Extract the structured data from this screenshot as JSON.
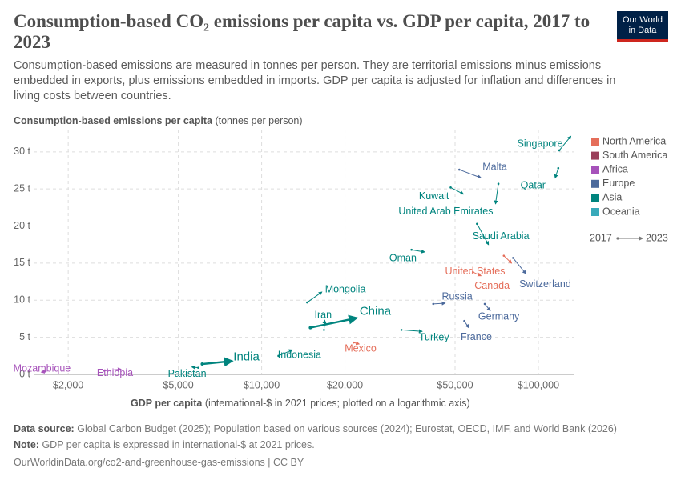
{
  "chart_data": {
    "type": "connected-scatter",
    "title": "Consumption-based CO₂ emissions per capita vs. GDP per capita, 2017 to 2023",
    "subtitle": "Consumption-based emissions are measured in tonnes per person. They are territorial emissions minus emissions embedded in exports, plus emissions embedded in imports. GDP per capita is adjusted for inflation and differences in living costs between countries.",
    "logo": "Our World in Data",
    "y_label": "Consumption-based emissions per capita",
    "y_unit": "(tonnes per person)",
    "x_label": "GDP per capita",
    "x_unit": "(international-$ in 2021 prices; plotted on a logarithmic axis)",
    "x_log": true,
    "grid": true,
    "xlim": [
      1500,
      135000
    ],
    "ylim": [
      0,
      33
    ],
    "xticks": [
      {
        "value": 2000,
        "label": "$2,000"
      },
      {
        "value": 5000,
        "label": "$5,000"
      },
      {
        "value": 10000,
        "label": "$10,000"
      },
      {
        "value": 20000,
        "label": "$20,000"
      },
      {
        "value": 50000,
        "label": "$50,000"
      },
      {
        "value": 100000,
        "label": "$100,000"
      }
    ],
    "yticks": [
      {
        "value": 0,
        "label": "0 t"
      },
      {
        "value": 5,
        "label": "5 t"
      },
      {
        "value": 10,
        "label": "10 t"
      },
      {
        "value": 15,
        "label": "15 t"
      },
      {
        "value": 20,
        "label": "20 t"
      },
      {
        "value": 25,
        "label": "25 t"
      },
      {
        "value": 30,
        "label": "30 t"
      }
    ],
    "regions": [
      {
        "name": "North America",
        "color": "#e56e5a"
      },
      {
        "name": "South America",
        "color": "#9a3f5a"
      },
      {
        "name": "Africa",
        "color": "#a652ba"
      },
      {
        "name": "Europe",
        "color": "#4c6a9c"
      },
      {
        "name": "Asia",
        "color": "#00847e"
      },
      {
        "name": "Oceania",
        "color": "#38aaba"
      }
    ],
    "time_labels": [
      "2017",
      "2023"
    ],
    "series": [
      {
        "name": "Singapore",
        "region": "Asia",
        "x": [
          119000,
          131000
        ],
        "values": [
          30.2,
          32.1
        ]
      },
      {
        "name": "Qatar",
        "region": "Asia",
        "x": [
          118000,
          115000
        ],
        "values": [
          27.8,
          26.5
        ]
      },
      {
        "name": "Kuwait",
        "region": "Asia",
        "x": [
          48200,
          53600
        ],
        "values": [
          25.2,
          24.3
        ]
      },
      {
        "name": "Malta",
        "region": "Europe",
        "x": [
          51800,
          62000
        ],
        "values": [
          27.6,
          26.5
        ]
      },
      {
        "name": "United Arab Emirates",
        "region": "Asia",
        "x": [
          71700,
          70000
        ],
        "values": [
          25.7,
          23.0
        ]
      },
      {
        "name": "Saudi Arabia",
        "region": "Asia",
        "x": [
          60000,
          66000
        ],
        "values": [
          20.3,
          17.5
        ]
      },
      {
        "name": "Oman",
        "region": "Asia",
        "x": [
          34800,
          38800
        ],
        "values": [
          16.8,
          16.5
        ]
      },
      {
        "name": "United States",
        "region": "North America",
        "x": [
          75000,
          80000
        ],
        "values": [
          16.0,
          15.0
        ]
      },
      {
        "name": "Canada",
        "region": "North America",
        "x": [
          58000,
          62000
        ],
        "values": [
          13.8,
          13.3
        ]
      },
      {
        "name": "Switzerland",
        "region": "Europe",
        "x": [
          81000,
          90000
        ],
        "values": [
          15.7,
          13.6
        ]
      },
      {
        "name": "Mongolia",
        "region": "Asia",
        "x": [
          14600,
          16500
        ],
        "values": [
          9.7,
          11.1
        ]
      },
      {
        "name": "Russia",
        "region": "Europe",
        "x": [
          41700,
          46000
        ],
        "values": [
          9.5,
          9.6
        ]
      },
      {
        "name": "Iran",
        "region": "Asia",
        "x": [
          16800,
          16900
        ],
        "values": [
          6.0,
          7.3
        ]
      },
      {
        "name": "China",
        "region": "Asia",
        "x": [
          15000,
          22000
        ],
        "values": [
          6.3,
          7.6
        ]
      },
      {
        "name": "Germany",
        "region": "Europe",
        "x": [
          64000,
          67000
        ],
        "values": [
          9.5,
          8.6
        ]
      },
      {
        "name": "Turkey",
        "region": "Asia",
        "x": [
          32000,
          38000
        ],
        "values": [
          6.0,
          5.8
        ]
      },
      {
        "name": "France",
        "region": "Europe",
        "x": [
          54000,
          56000
        ],
        "values": [
          7.2,
          6.3
        ]
      },
      {
        "name": "Mexico",
        "region": "North America",
        "x": [
          21500,
          22500
        ],
        "values": [
          4.3,
          4.1
        ]
      },
      {
        "name": "Indonesia",
        "region": "Asia",
        "x": [
          11500,
          12900
        ],
        "values": [
          2.5,
          3.3
        ]
      },
      {
        "name": "India",
        "region": "Asia",
        "x": [
          6100,
          7800
        ],
        "values": [
          1.4,
          1.8
        ]
      },
      {
        "name": "Pakistan",
        "region": "Asia",
        "x": [
          5900,
          5600
        ],
        "values": [
          0.9,
          1.0
        ]
      },
      {
        "name": "Ethiopia",
        "region": "Africa",
        "x": [
          2700,
          3100
        ],
        "values": [
          0.5,
          0.7
        ]
      },
      {
        "name": "Mozambique",
        "region": "Africa",
        "x": [
          1650,
          1600
        ],
        "values": [
          0.4,
          0.3
        ]
      }
    ],
    "source_label": "Data source:",
    "source": "Global Carbon Budget (2025); Population based on various sources (2024); Eurostat, OECD, IMF, and World Bank (2026)",
    "note_label": "Note:",
    "note": "GDP per capita is expressed in international-$ at 2021 prices.",
    "url": "OurWorldinData.org/co2-and-greenhouse-gas-emissions | CC BY"
  }
}
